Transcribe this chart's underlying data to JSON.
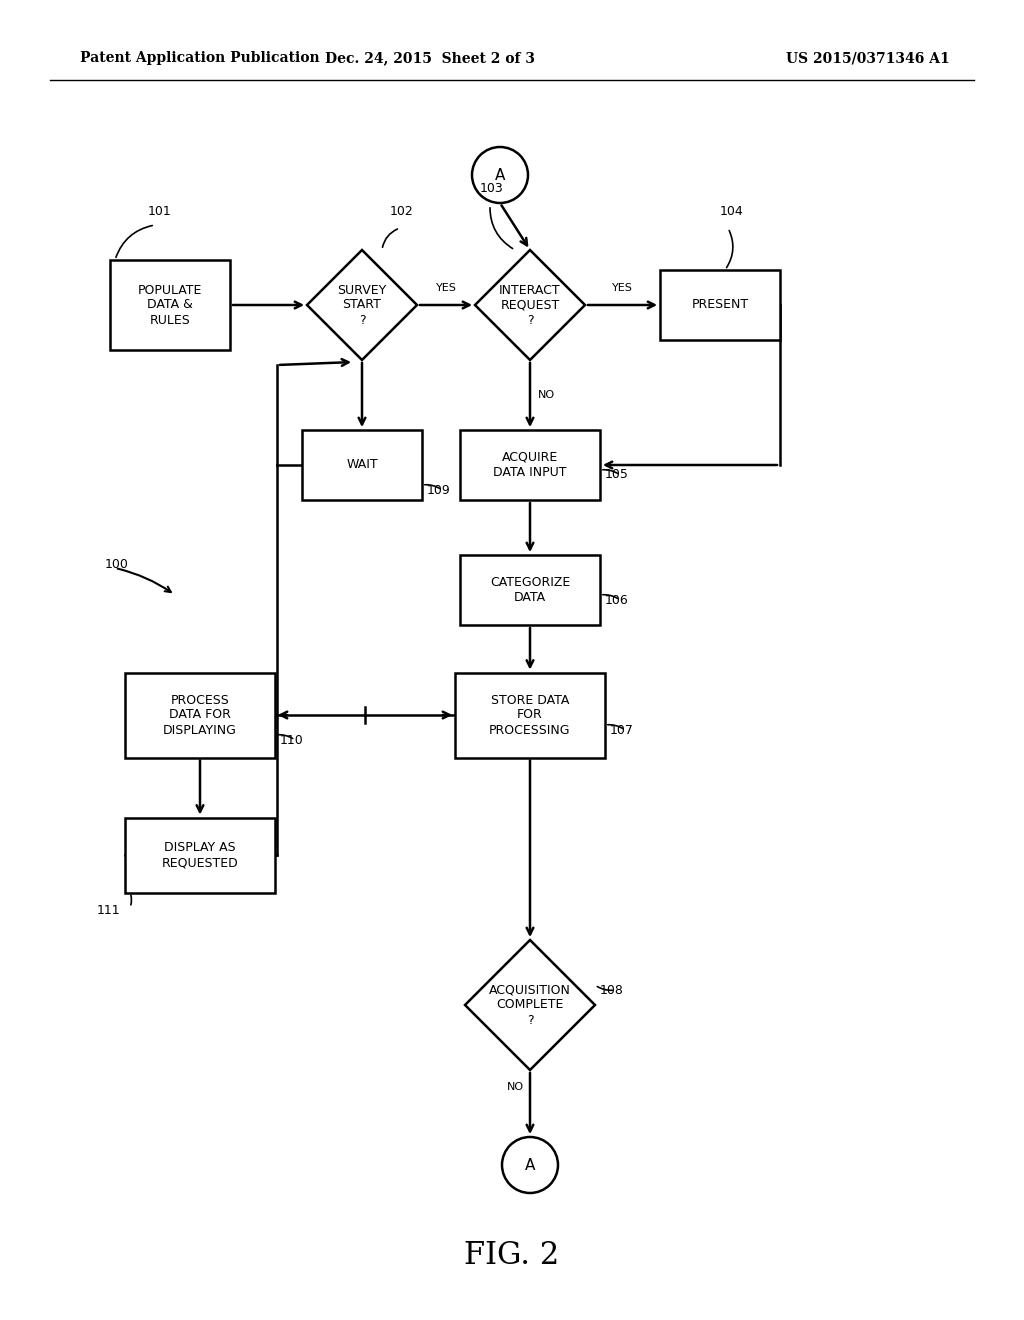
{
  "bg_color": "#ffffff",
  "header_left": "Patent Application Publication",
  "header_mid": "Dec. 24, 2015  Sheet 2 of 3",
  "header_right": "US 2015/0371346 A1",
  "figure_label": "FIG. 2",
  "line_width": 1.8,
  "font_size_node": 9,
  "font_size_label": 9,
  "font_size_header": 10,
  "font_size_fig": 22
}
